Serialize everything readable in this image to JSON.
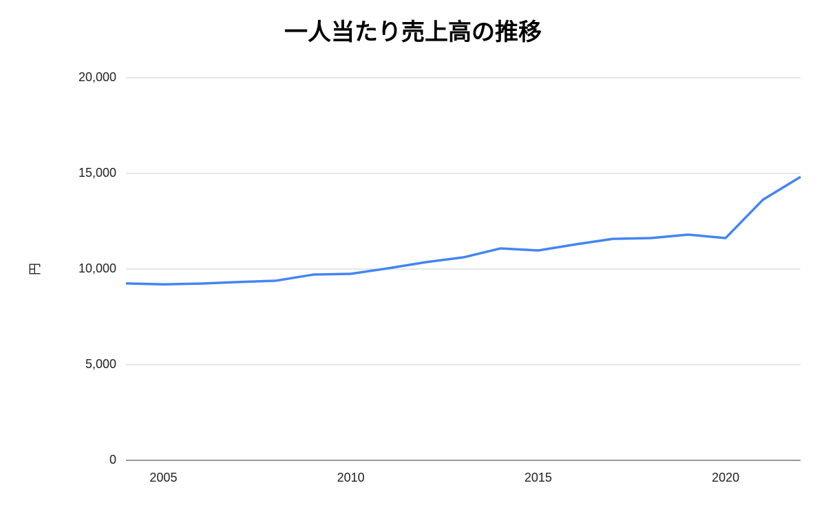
{
  "chart_data": {
    "type": "line",
    "title": "一人当たり売上高の推移",
    "y_label": "円",
    "x": [
      2004,
      2005,
      2006,
      2007,
      2008,
      2009,
      2010,
      2011,
      2012,
      2013,
      2014,
      2015,
      2016,
      2017,
      2018,
      2019,
      2020,
      2021,
      2022
    ],
    "series": [
      {
        "name": "一人当たり売上高",
        "color": "#4285f4",
        "values": [
          9250,
          9200,
          9240,
          9320,
          9390,
          9710,
          9750,
          10040,
          10360,
          10610,
          11080,
          10970,
          11290,
          11580,
          11620,
          11800,
          11620,
          13630,
          14820
        ]
      }
    ],
    "xlim": [
      2004,
      2022
    ],
    "xticks": [
      2005,
      2010,
      2015,
      2020
    ],
    "ylim": [
      0,
      20000
    ],
    "yticks": [
      0,
      {
        "value": 5000,
        "label": "5,000"
      },
      {
        "value": 10000,
        "label": "10,000"
      },
      {
        "value": 15000,
        "label": "15,000"
      },
      {
        "value": 20000,
        "label": "20,000"
      }
    ],
    "grid": true
  }
}
